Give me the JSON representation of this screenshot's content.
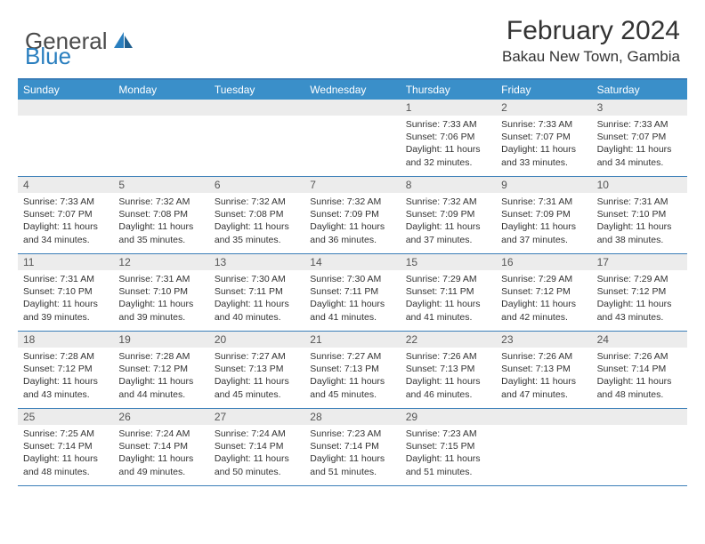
{
  "logo": {
    "text1": "General",
    "text2": "Blue"
  },
  "title": "February 2024",
  "location": "Bakau New Town, Gambia",
  "colors": {
    "header_bar": "#3a8fc9",
    "border": "#3a7eb8",
    "daynum_bg": "#ececec",
    "logo_gray": "#4a4a4a",
    "logo_blue": "#2a7fbf"
  },
  "weekdays": [
    "Sunday",
    "Monday",
    "Tuesday",
    "Wednesday",
    "Thursday",
    "Friday",
    "Saturday"
  ],
  "weeks": [
    [
      {
        "num": "",
        "sunrise": "",
        "sunset": "",
        "daylight": ""
      },
      {
        "num": "",
        "sunrise": "",
        "sunset": "",
        "daylight": ""
      },
      {
        "num": "",
        "sunrise": "",
        "sunset": "",
        "daylight": ""
      },
      {
        "num": "",
        "sunrise": "",
        "sunset": "",
        "daylight": ""
      },
      {
        "num": "1",
        "sunrise": "Sunrise: 7:33 AM",
        "sunset": "Sunset: 7:06 PM",
        "daylight": "Daylight: 11 hours and 32 minutes."
      },
      {
        "num": "2",
        "sunrise": "Sunrise: 7:33 AM",
        "sunset": "Sunset: 7:07 PM",
        "daylight": "Daylight: 11 hours and 33 minutes."
      },
      {
        "num": "3",
        "sunrise": "Sunrise: 7:33 AM",
        "sunset": "Sunset: 7:07 PM",
        "daylight": "Daylight: 11 hours and 34 minutes."
      }
    ],
    [
      {
        "num": "4",
        "sunrise": "Sunrise: 7:33 AM",
        "sunset": "Sunset: 7:07 PM",
        "daylight": "Daylight: 11 hours and 34 minutes."
      },
      {
        "num": "5",
        "sunrise": "Sunrise: 7:32 AM",
        "sunset": "Sunset: 7:08 PM",
        "daylight": "Daylight: 11 hours and 35 minutes."
      },
      {
        "num": "6",
        "sunrise": "Sunrise: 7:32 AM",
        "sunset": "Sunset: 7:08 PM",
        "daylight": "Daylight: 11 hours and 35 minutes."
      },
      {
        "num": "7",
        "sunrise": "Sunrise: 7:32 AM",
        "sunset": "Sunset: 7:09 PM",
        "daylight": "Daylight: 11 hours and 36 minutes."
      },
      {
        "num": "8",
        "sunrise": "Sunrise: 7:32 AM",
        "sunset": "Sunset: 7:09 PM",
        "daylight": "Daylight: 11 hours and 37 minutes."
      },
      {
        "num": "9",
        "sunrise": "Sunrise: 7:31 AM",
        "sunset": "Sunset: 7:09 PM",
        "daylight": "Daylight: 11 hours and 37 minutes."
      },
      {
        "num": "10",
        "sunrise": "Sunrise: 7:31 AM",
        "sunset": "Sunset: 7:10 PM",
        "daylight": "Daylight: 11 hours and 38 minutes."
      }
    ],
    [
      {
        "num": "11",
        "sunrise": "Sunrise: 7:31 AM",
        "sunset": "Sunset: 7:10 PM",
        "daylight": "Daylight: 11 hours and 39 minutes."
      },
      {
        "num": "12",
        "sunrise": "Sunrise: 7:31 AM",
        "sunset": "Sunset: 7:10 PM",
        "daylight": "Daylight: 11 hours and 39 minutes."
      },
      {
        "num": "13",
        "sunrise": "Sunrise: 7:30 AM",
        "sunset": "Sunset: 7:11 PM",
        "daylight": "Daylight: 11 hours and 40 minutes."
      },
      {
        "num": "14",
        "sunrise": "Sunrise: 7:30 AM",
        "sunset": "Sunset: 7:11 PM",
        "daylight": "Daylight: 11 hours and 41 minutes."
      },
      {
        "num": "15",
        "sunrise": "Sunrise: 7:29 AM",
        "sunset": "Sunset: 7:11 PM",
        "daylight": "Daylight: 11 hours and 41 minutes."
      },
      {
        "num": "16",
        "sunrise": "Sunrise: 7:29 AM",
        "sunset": "Sunset: 7:12 PM",
        "daylight": "Daylight: 11 hours and 42 minutes."
      },
      {
        "num": "17",
        "sunrise": "Sunrise: 7:29 AM",
        "sunset": "Sunset: 7:12 PM",
        "daylight": "Daylight: 11 hours and 43 minutes."
      }
    ],
    [
      {
        "num": "18",
        "sunrise": "Sunrise: 7:28 AM",
        "sunset": "Sunset: 7:12 PM",
        "daylight": "Daylight: 11 hours and 43 minutes."
      },
      {
        "num": "19",
        "sunrise": "Sunrise: 7:28 AM",
        "sunset": "Sunset: 7:12 PM",
        "daylight": "Daylight: 11 hours and 44 minutes."
      },
      {
        "num": "20",
        "sunrise": "Sunrise: 7:27 AM",
        "sunset": "Sunset: 7:13 PM",
        "daylight": "Daylight: 11 hours and 45 minutes."
      },
      {
        "num": "21",
        "sunrise": "Sunrise: 7:27 AM",
        "sunset": "Sunset: 7:13 PM",
        "daylight": "Daylight: 11 hours and 45 minutes."
      },
      {
        "num": "22",
        "sunrise": "Sunrise: 7:26 AM",
        "sunset": "Sunset: 7:13 PM",
        "daylight": "Daylight: 11 hours and 46 minutes."
      },
      {
        "num": "23",
        "sunrise": "Sunrise: 7:26 AM",
        "sunset": "Sunset: 7:13 PM",
        "daylight": "Daylight: 11 hours and 47 minutes."
      },
      {
        "num": "24",
        "sunrise": "Sunrise: 7:26 AM",
        "sunset": "Sunset: 7:14 PM",
        "daylight": "Daylight: 11 hours and 48 minutes."
      }
    ],
    [
      {
        "num": "25",
        "sunrise": "Sunrise: 7:25 AM",
        "sunset": "Sunset: 7:14 PM",
        "daylight": "Daylight: 11 hours and 48 minutes."
      },
      {
        "num": "26",
        "sunrise": "Sunrise: 7:24 AM",
        "sunset": "Sunset: 7:14 PM",
        "daylight": "Daylight: 11 hours and 49 minutes."
      },
      {
        "num": "27",
        "sunrise": "Sunrise: 7:24 AM",
        "sunset": "Sunset: 7:14 PM",
        "daylight": "Daylight: 11 hours and 50 minutes."
      },
      {
        "num": "28",
        "sunrise": "Sunrise: 7:23 AM",
        "sunset": "Sunset: 7:14 PM",
        "daylight": "Daylight: 11 hours and 51 minutes."
      },
      {
        "num": "29",
        "sunrise": "Sunrise: 7:23 AM",
        "sunset": "Sunset: 7:15 PM",
        "daylight": "Daylight: 11 hours and 51 minutes."
      },
      {
        "num": "",
        "sunrise": "",
        "sunset": "",
        "daylight": ""
      },
      {
        "num": "",
        "sunrise": "",
        "sunset": "",
        "daylight": ""
      }
    ]
  ]
}
